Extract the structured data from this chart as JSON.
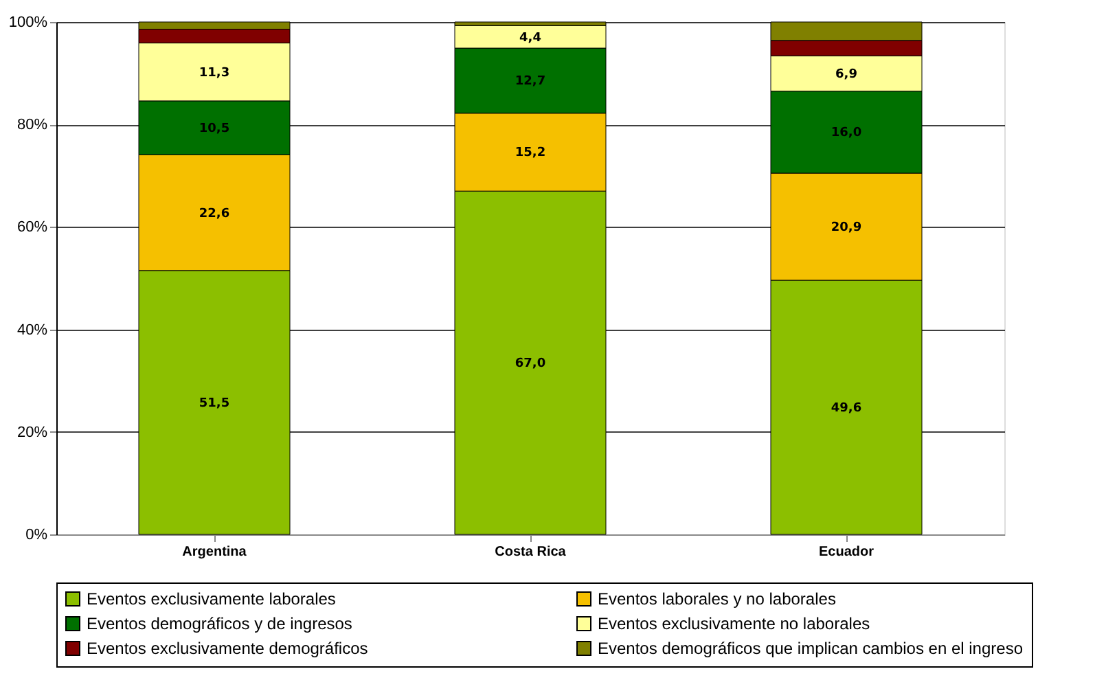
{
  "chart_data": {
    "type": "bar",
    "stacked": true,
    "categories": [
      "Argentina",
      "Costa Rica",
      "Ecuador"
    ],
    "series": [
      {
        "name": "Eventos exclusivamente laborales",
        "color": "#8cbf00",
        "values": [
          51.5,
          67.0,
          49.6
        ],
        "value_labels": [
          "51,5",
          "67,0",
          "49,6"
        ]
      },
      {
        "name": "Eventos laborales y no laborales",
        "color": "#f5c000",
        "values": [
          22.6,
          15.2,
          20.9
        ],
        "value_labels": [
          "22,6",
          "15,2",
          "20,9"
        ]
      },
      {
        "name": "Eventos demográficos y de ingresos",
        "color": "#007000",
        "values": [
          10.5,
          12.7,
          16.0
        ],
        "value_labels": [
          "10,5",
          "12,7",
          "16,0"
        ]
      },
      {
        "name": "Eventos exclusivamente no laborales",
        "color": "#ffff99",
        "values": [
          11.3,
          4.4,
          6.9
        ],
        "value_labels": [
          "11,3",
          "4,4",
          "6,9"
        ]
      },
      {
        "name": "Eventos exclusivamente demográficos",
        "color": "#800000",
        "values": [
          2.7,
          0.0,
          3.0
        ],
        "value_labels": [
          null,
          null,
          null
        ]
      },
      {
        "name": "Eventos demográficos que implican cambios en el ingreso",
        "color": "#808000",
        "values": [
          1.4,
          0.7,
          3.6
        ],
        "value_labels": [
          null,
          null,
          null
        ]
      }
    ],
    "ylim": [
      0,
      100
    ],
    "yticks": [
      {
        "value": 0,
        "label": "0%"
      },
      {
        "value": 20,
        "label": "20%"
      },
      {
        "value": 40,
        "label": "40%"
      },
      {
        "value": 60,
        "label": "60%"
      },
      {
        "value": 80,
        "label": "80%"
      },
      {
        "value": 100,
        "label": "100%"
      }
    ],
    "grid": "y",
    "legend": "bottom"
  }
}
